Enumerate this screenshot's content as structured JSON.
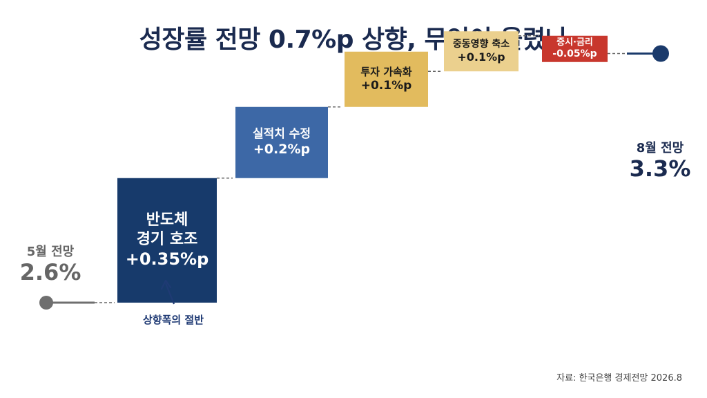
{
  "title": "성장률 전망 0.7%p 상향, 무엇이 올렸나",
  "colors": {
    "title": "#1a2a4f",
    "start": "#6f6f6f",
    "end": "#1a3a6b",
    "semiconductor": "#173a6b",
    "revision": "#3d68a6",
    "investment": "#e2bb5e",
    "middle_east": "#ebd08e",
    "stock_rate": "#c8372d",
    "connector": "#666666",
    "annotation": "#1f3a74"
  },
  "chart_data": {
    "type": "waterfall",
    "unit": "%",
    "start": {
      "label": "5월 전망",
      "value": 2.6,
      "display": "2.6%"
    },
    "end": {
      "label": "8월 전망",
      "value": 3.3,
      "display": "3.3%"
    },
    "steps": [
      {
        "name": [
          "반도체",
          "경기 호조"
        ],
        "value": 0.35,
        "display": "+0.35%p",
        "color_key": "semiconductor"
      },
      {
        "name": [
          "실적치 수정"
        ],
        "value": 0.2,
        "display": "+0.2%p",
        "color_key": "revision"
      },
      {
        "name": [
          "투자 가속화"
        ],
        "value": 0.1,
        "display": "+0.1%p",
        "color_key": "investment"
      },
      {
        "name": [
          "중동영향 축소"
        ],
        "value": 0.1,
        "display": "+0.1%p",
        "color_key": "middle_east"
      },
      {
        "name": [
          "증시·금리"
        ],
        "value": -0.05,
        "display": "-0.05%p",
        "color_key": "stock_rate"
      }
    ],
    "annotation": {
      "text": "상향폭의 절반",
      "target_step": 0
    }
  },
  "source": "자료: 한국은행 경제전망 2026.8"
}
